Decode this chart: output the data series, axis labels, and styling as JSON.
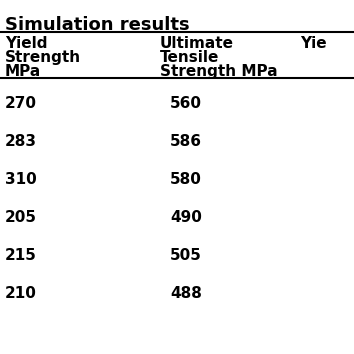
{
  "title": "Simulation results",
  "col1_header_lines": [
    "Yield",
    "Strength",
    "MPa"
  ],
  "col2_header_lines": [
    "Ultimate",
    "Tensile",
    "Strength MPa"
  ],
  "col3_header_lines": [
    "Yie"
  ],
  "col1_values": [
    "270",
    "283",
    "310",
    "205",
    "215",
    "210"
  ],
  "col2_values": [
    "560",
    "586",
    "580",
    "490",
    "505",
    "488"
  ],
  "col3_values": [
    "",
    "",
    "",
    "",
    "",
    ""
  ],
  "bg_color": "#ffffff",
  "text_color": "#000000",
  "header_fontsize": 11,
  "data_fontsize": 11,
  "title_fontsize": 13
}
